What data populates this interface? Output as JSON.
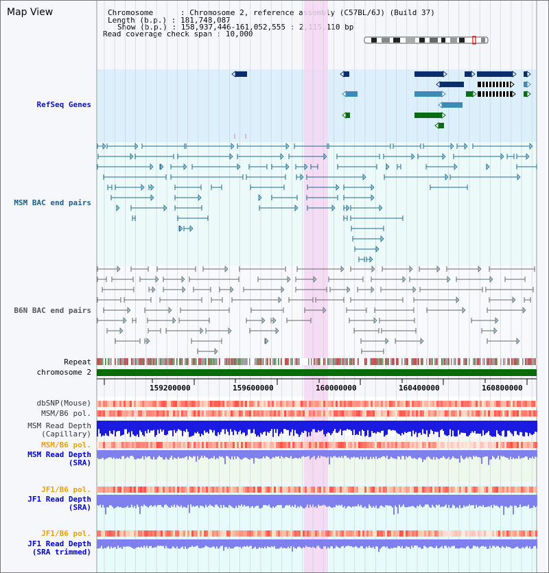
{
  "title": "Map View",
  "info": {
    "chromosome_key": "Chromosome",
    "chromosome_val": ": Chromosome 2, reference assembly (C57BL/6J) (Build 37)",
    "length_key": "Length (b.p.)",
    "length_val": ": 181,748,087",
    "show_key": "Show (b.p.)",
    "show_val": ": 158,937,446-161,052,555 : 2,115,110 bp",
    "coverage_key": "Read coverage check span",
    "coverage_val": ": 10,000"
  },
  "tracks": {
    "refseq": "RefSeq Genes",
    "msm_bac": "MSM BAC end pairs",
    "b6n_bac": "B6N BAC end pairs",
    "repeat": "Repeat",
    "chromosome": "chromosome 2",
    "dbsnp": "dbSNP(Mouse)",
    "msm_b6_pol_1": "MSM/B6 pol.",
    "msm_read_depth_cap_1": "MSM Read Depth",
    "msm_read_depth_cap_2": "(Capillary)",
    "msm_b6_pol_2": "MSM/B6 pol.",
    "msm_read_depth_sra_1": "MSM Read Depth",
    "msm_read_depth_sra_2": "(SRA)",
    "jf1_b6_pol_1": "JF1/B6 pol.",
    "jf1_read_depth_1": "JF1 Read Depth",
    "jf1_read_depth_2": "(SRA)",
    "jf1_b6_pol_2": "JF1/B6 pol.",
    "jf1_trim_1": "JF1 Read Depth",
    "jf1_trim_2": "(SRA trimmed)"
  },
  "axis": {
    "ticks": [
      "159200000",
      "159600000",
      "160000000",
      "160400000",
      "160800000"
    ]
  },
  "colors": {
    "refseq_bg": "#dcf0fb",
    "bac_bg": "#edfafa",
    "highlight": "#f5d6f2",
    "gene_dark": "#0b2d6b",
    "gene_mid": "#3d8ab5",
    "gene_green": "#0a6b14",
    "msm_line": "#1a6a8a",
    "b6n_line": "#666666",
    "chrom_bar": "#0a6b0a",
    "depth_blue": "#1a1ae0",
    "depth_light": "#7f7fee"
  }
}
